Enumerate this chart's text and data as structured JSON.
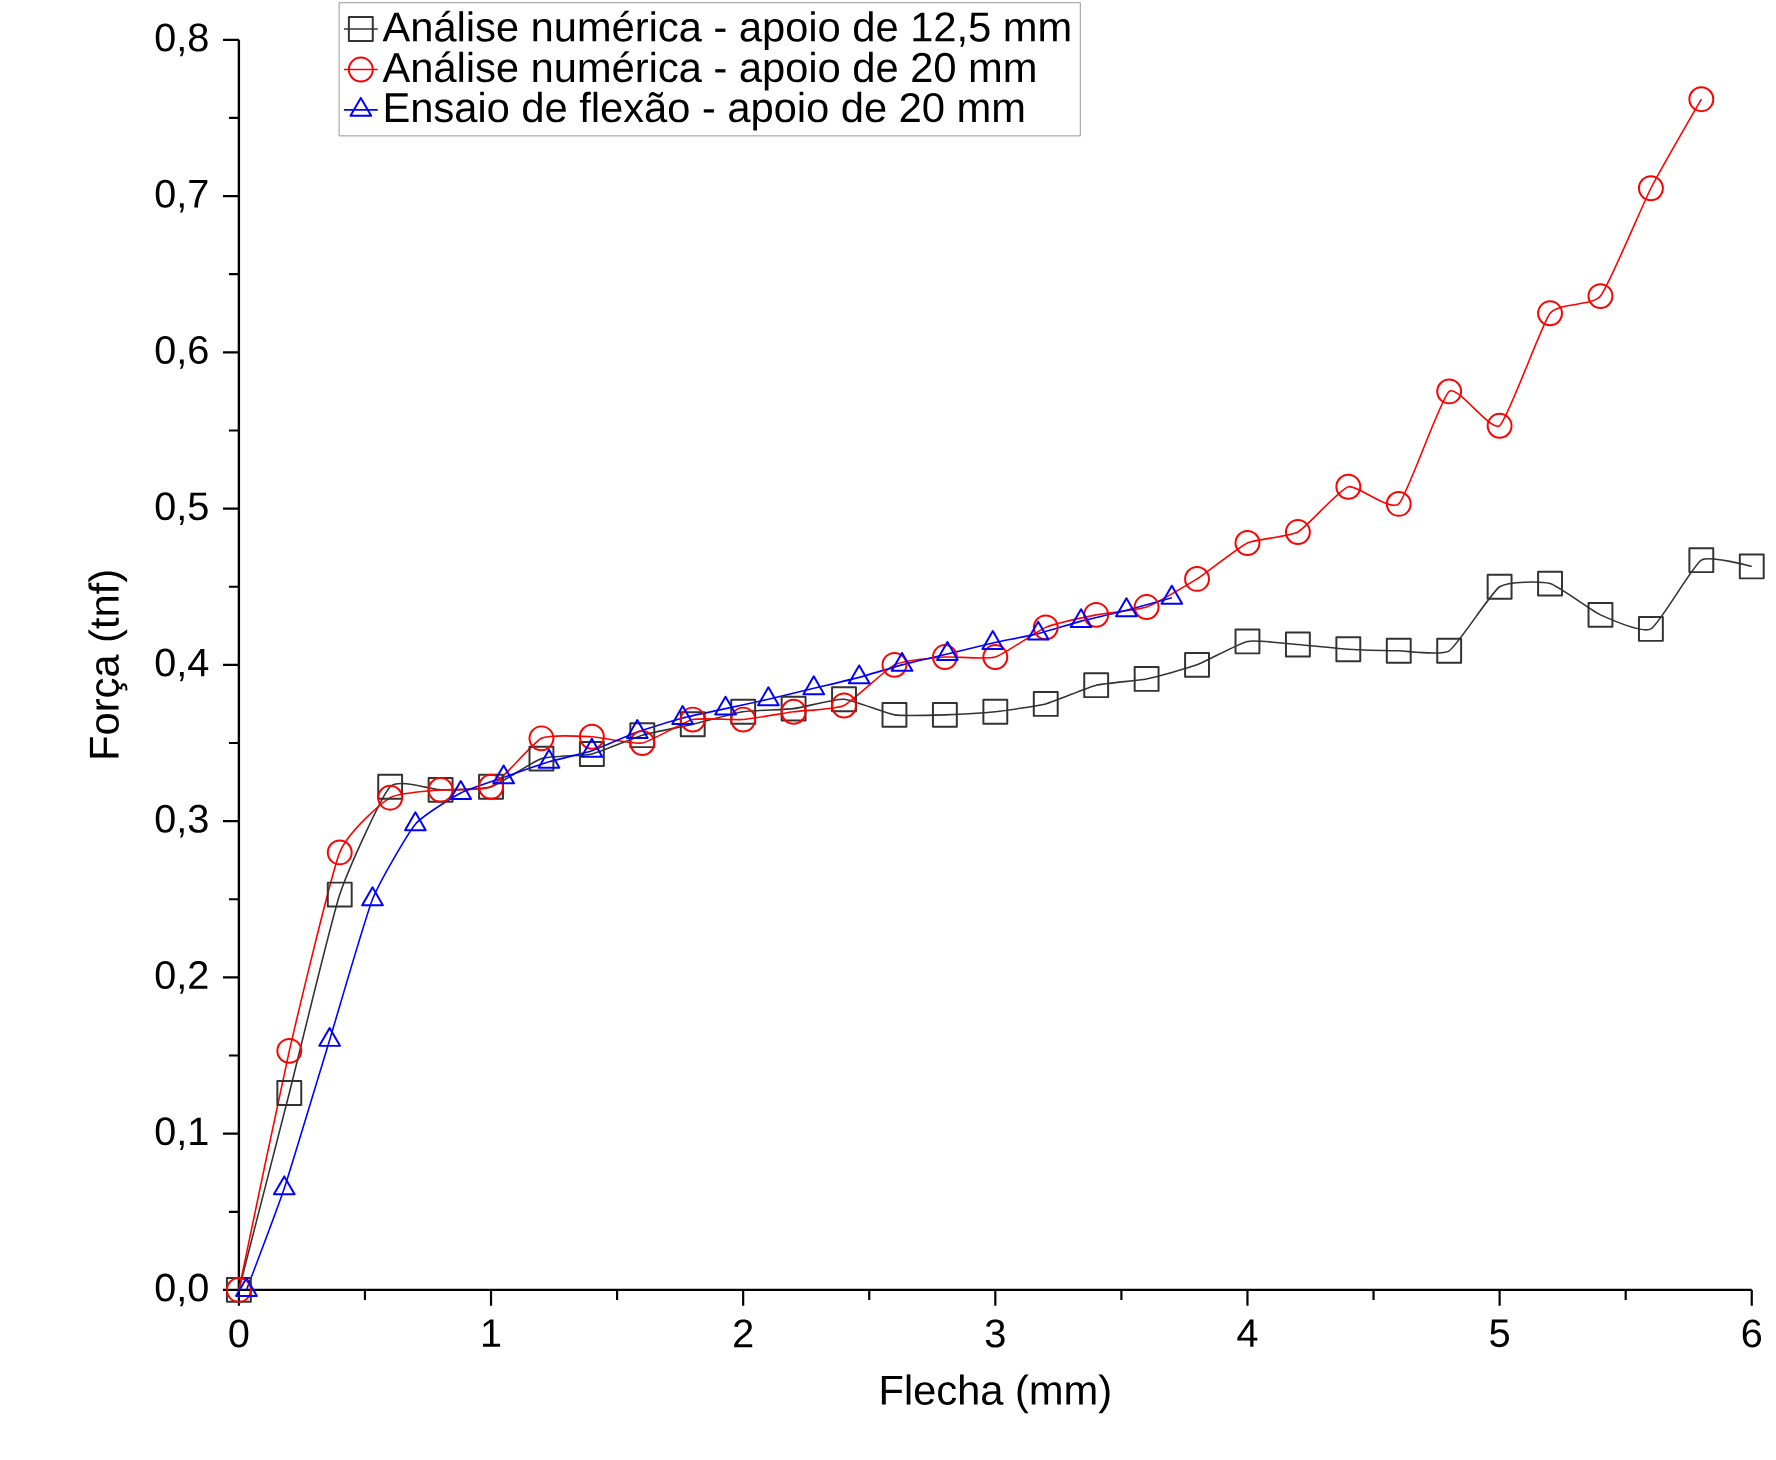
{
  "chart_data": {
    "type": "line",
    "xlabel": "Flecha (mm)",
    "ylabel": "Força (tnf)",
    "xlim": [
      0,
      6
    ],
    "ylim": [
      0,
      0.8
    ],
    "xticks": [
      0,
      1,
      2,
      3,
      4,
      5,
      6
    ],
    "yticks": [
      {
        "value": 0,
        "label": "0,0"
      },
      {
        "value": 0.1,
        "label": "0,1"
      },
      {
        "value": 0.2,
        "label": "0,2"
      },
      {
        "value": 0.3,
        "label": "0,3"
      },
      {
        "value": 0.4,
        "label": "0,4"
      },
      {
        "value": 0.5,
        "label": "0,5"
      },
      {
        "value": 0.6,
        "label": "0,6"
      },
      {
        "value": 0.7,
        "label": "0,7"
      },
      {
        "value": 0.8,
        "label": "0,8"
      }
    ],
    "grid": false,
    "legend": "top",
    "line_style": "solid",
    "series": [
      {
        "name": "Análise numérica - apoio de 12,5 mm",
        "color": "#333333",
        "marker": "square",
        "x": [
          0,
          0.2,
          0.4,
          0.6,
          0.8,
          1.0,
          1.2,
          1.4,
          1.6,
          1.8,
          2.0,
          2.2,
          2.4,
          2.6,
          2.8,
          3.0,
          3.2,
          3.4,
          3.6,
          3.8,
          4.0,
          4.2,
          4.4,
          4.6,
          4.8,
          5.0,
          5.2,
          5.4,
          5.6,
          5.8,
          6.0
        ],
        "values": [
          0,
          0.126,
          0.253,
          0.322,
          0.32,
          0.322,
          0.34,
          0.343,
          0.355,
          0.362,
          0.37,
          0.372,
          0.378,
          0.368,
          0.368,
          0.37,
          0.375,
          0.387,
          0.391,
          0.4,
          0.415,
          0.413,
          0.41,
          0.409,
          0.409,
          0.45,
          0.452,
          0.432,
          0.423,
          0.467,
          0.463
        ]
      },
      {
        "name": "Análise numérica - apoio de 20 mm",
        "color": "#ff0000",
        "marker": "circle",
        "x": [
          0,
          0.2,
          0.4,
          0.6,
          0.8,
          1.0,
          1.2,
          1.4,
          1.6,
          1.8,
          2.0,
          2.2,
          2.4,
          2.6,
          2.8,
          3.0,
          3.2,
          3.4,
          3.6,
          3.8,
          4.0,
          4.2,
          4.4,
          4.6,
          4.8,
          5.0,
          5.2,
          5.4,
          5.6,
          5.8
        ],
        "values": [
          0,
          0.153,
          0.28,
          0.315,
          0.32,
          0.322,
          0.353,
          0.354,
          0.35,
          0.365,
          0.365,
          0.37,
          0.374,
          0.4,
          0.405,
          0.405,
          0.424,
          0.432,
          0.437,
          0.455,
          0.478,
          0.485,
          0.514,
          0.503,
          0.575,
          0.553,
          0.625,
          0.636,
          0.705,
          0.762
        ]
      },
      {
        "name": "Ensaio de flexão - apoio de 20 mm",
        "color": "#0000ff",
        "marker": "triangle",
        "x": [
          0.03,
          0.18,
          0.36,
          0.53,
          0.7,
          0.88,
          1.05,
          1.23,
          1.4,
          1.58,
          1.76,
          1.93,
          2.1,
          2.28,
          2.46,
          2.63,
          2.81,
          2.99,
          3.17,
          3.34,
          3.52,
          3.7
        ],
        "values": [
          0,
          0.065,
          0.16,
          0.25,
          0.298,
          0.318,
          0.328,
          0.338,
          0.345,
          0.357,
          0.366,
          0.372,
          0.378,
          0.385,
          0.392,
          0.4,
          0.407,
          0.414,
          0.42,
          0.428,
          0.435,
          0.443
        ]
      }
    ]
  }
}
